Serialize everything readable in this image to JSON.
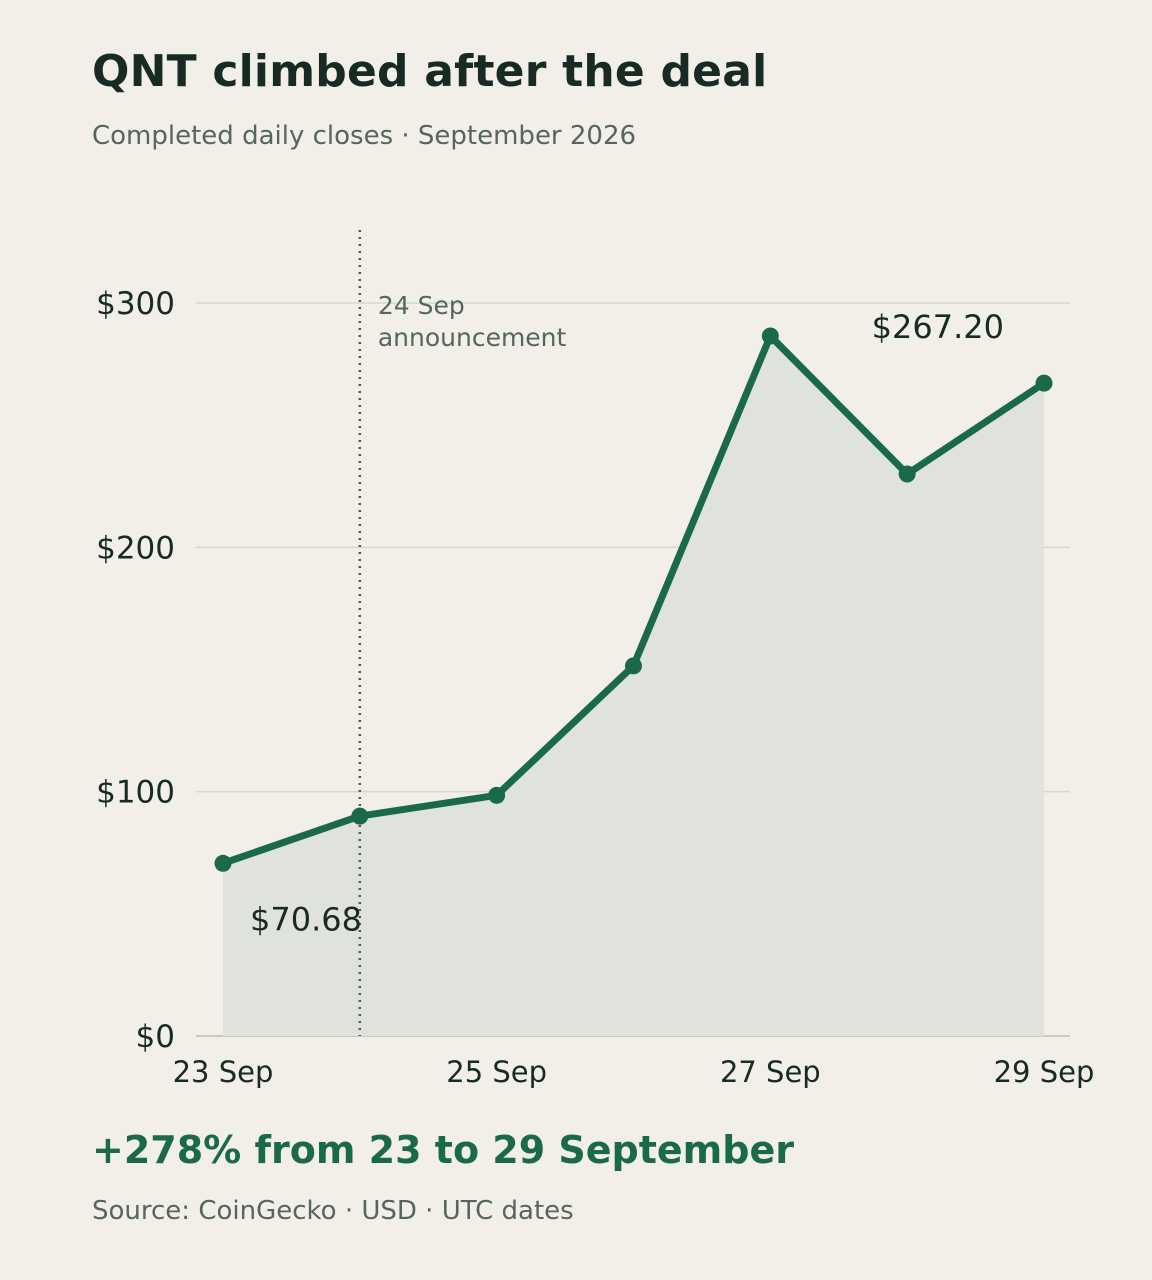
{
  "header": {
    "title": "QNT climbed after the deal",
    "subtitle": "Completed daily closes · September 2026"
  },
  "footer": {
    "callout": "+278% from 23 to 29 September",
    "source": "Source: CoinGecko · USD · UTC dates"
  },
  "colors": {
    "line": "#1a6a4a",
    "area": "#e0e3db",
    "grid": "#d5d8cf",
    "annotation_rule": "#4d5a55",
    "background": "#f2efe8"
  },
  "chart_data": {
    "type": "line",
    "x": [
      "23 Sep",
      "24 Sep",
      "25 Sep",
      "26 Sep",
      "27 Sep",
      "28 Sep",
      "29 Sep"
    ],
    "series": [
      {
        "values": [
          70.68,
          90,
          98.5,
          151.5,
          286.5,
          230,
          267.2
        ]
      }
    ],
    "area_fill": true,
    "ylim": [
      0,
      330
    ],
    "y_ticks": [
      {
        "value": 0,
        "label": "$0"
      },
      {
        "value": 100,
        "label": "$100"
      },
      {
        "value": 200,
        "label": "$200"
      },
      {
        "value": 300,
        "label": "$300"
      }
    ],
    "x_ticks": [
      {
        "date": "23 Sep",
        "label": "23 Sep"
      },
      {
        "date": "25 Sep",
        "label": "25 Sep"
      },
      {
        "date": "27 Sep",
        "label": "27 Sep"
      },
      {
        "date": "29 Sep",
        "label": "29 Sep"
      }
    ],
    "grid": "horizontal",
    "annotations": [
      {
        "date": "24 Sep",
        "lines": [
          "24 Sep",
          "announcement"
        ],
        "style": "dotted-vertical-rule"
      }
    ],
    "data_labels": [
      {
        "date": "23 Sep",
        "text": "$70.68",
        "placement": "below-right"
      },
      {
        "date": "29 Sep",
        "text": "$267.20",
        "placement": "upper-left"
      }
    ]
  }
}
